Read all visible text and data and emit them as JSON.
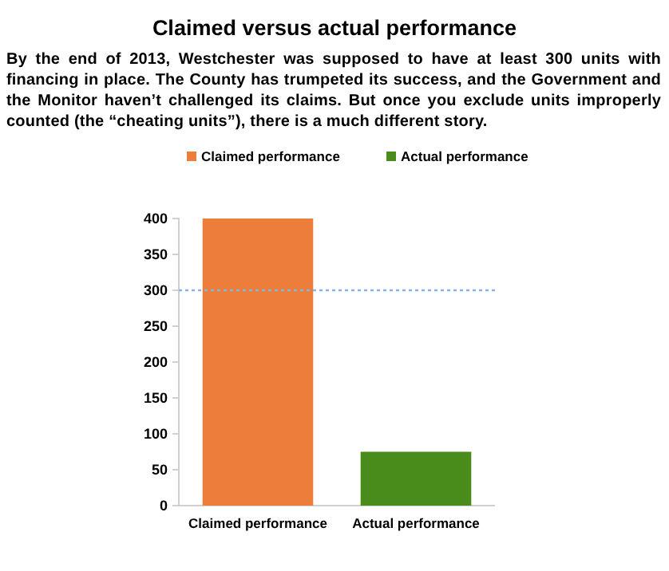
{
  "chart_data": {
    "type": "bar",
    "title": "Claimed versus actual performance",
    "subtitle": "By the end of 2013, Westchester was supposed to have at least 300 units with financing in place.  The County has trumpeted its success, and the Government and the Monitor haven’t challenged its claims.  But once you exclude units improperly counted (the “cheating units”), there is a much different story.",
    "categories": [
      "Claimed performance",
      "Actual performance"
    ],
    "series": [
      {
        "name": "Claimed performance",
        "color": "#ed7d3a",
        "values": [
          400,
          null
        ]
      },
      {
        "name": "Actual performance",
        "color": "#4a8c1c",
        "values": [
          null,
          75
        ]
      }
    ],
    "ylim": [
      0,
      400
    ],
    "yticks": [
      0,
      50,
      100,
      150,
      200,
      250,
      300,
      350,
      400
    ],
    "ref_lines": [
      {
        "axis": "y",
        "value": 300,
        "color": "#8fb4d9",
        "line_style": "dotted"
      }
    ],
    "legend": "top",
    "grid": false
  }
}
